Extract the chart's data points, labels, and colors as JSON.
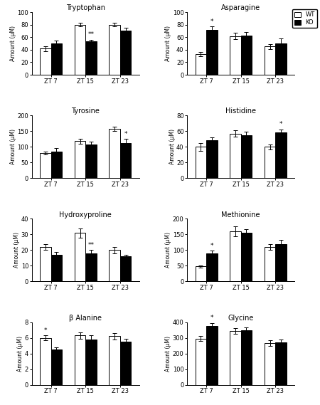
{
  "panels": [
    {
      "title": "Tryptophan",
      "ylabel": "Amount (μM)",
      "ylim": [
        0,
        100
      ],
      "yticks": [
        0,
        20,
        40,
        60,
        80,
        100
      ],
      "wt": [
        42,
        80,
        80
      ],
      "ko": [
        50,
        53,
        71
      ],
      "wt_err": [
        4,
        3,
        3
      ],
      "ko_err": [
        5,
        3,
        4
      ],
      "sig": [
        null,
        "**",
        null
      ],
      "sig_on": "ko"
    },
    {
      "title": "Asparagine",
      "ylabel": "Amount (μM)",
      "ylim": [
        0,
        100
      ],
      "yticks": [
        0,
        20,
        40,
        60,
        80,
        100
      ],
      "wt": [
        33,
        62,
        45
      ],
      "ko": [
        72,
        63,
        50
      ],
      "wt_err": [
        3,
        5,
        4
      ],
      "ko_err": [
        5,
        5,
        8
      ],
      "sig": [
        "*",
        null,
        null
      ],
      "sig_on": "ko"
    },
    {
      "title": "Tyrosine",
      "ylabel": "Amount (μM)",
      "ylim": [
        0,
        200
      ],
      "yticks": [
        0,
        50,
        100,
        150,
        200
      ],
      "wt": [
        80,
        118,
        157
      ],
      "ko": [
        85,
        107,
        113
      ],
      "wt_err": [
        5,
        8,
        7
      ],
      "ko_err": [
        10,
        10,
        12
      ],
      "sig": [
        null,
        null,
        "*"
      ],
      "sig_on": "ko"
    },
    {
      "title": "Histidine",
      "ylabel": "Amount (μM)",
      "ylim": [
        0,
        80
      ],
      "yticks": [
        0,
        20,
        40,
        60,
        80
      ],
      "wt": [
        40,
        57,
        40
      ],
      "ko": [
        48,
        55,
        58
      ],
      "wt_err": [
        5,
        4,
        3
      ],
      "ko_err": [
        4,
        4,
        4
      ],
      "sig": [
        null,
        null,
        "*"
      ],
      "sig_on": "ko"
    },
    {
      "title": "Hydroxyproline",
      "ylabel": "Amount (μM)",
      "ylim": [
        0,
        40
      ],
      "yticks": [
        0,
        10,
        20,
        30,
        40
      ],
      "wt": [
        22,
        31,
        20
      ],
      "ko": [
        17,
        18,
        16
      ],
      "wt_err": [
        2,
        3,
        2
      ],
      "ko_err": [
        2,
        2,
        1
      ],
      "sig": [
        null,
        "**",
        null
      ],
      "sig_on": "ko"
    },
    {
      "title": "Methionine",
      "ylabel": "Amount (μM)",
      "ylim": [
        0,
        200
      ],
      "yticks": [
        0,
        50,
        100,
        150,
        200
      ],
      "wt": [
        48,
        160,
        110
      ],
      "ko": [
        90,
        155,
        120
      ],
      "wt_err": [
        4,
        15,
        8
      ],
      "ko_err": [
        8,
        12,
        12
      ],
      "sig": [
        "*",
        null,
        null
      ],
      "sig_on": "ko"
    },
    {
      "title": "β Alanine",
      "ylabel": "Amount (μM)",
      "ylim": [
        0,
        8
      ],
      "yticks": [
        0,
        2,
        4,
        6,
        8
      ],
      "wt": [
        6.0,
        6.3,
        6.2
      ],
      "ko": [
        4.5,
        5.8,
        5.5
      ],
      "wt_err": [
        0.3,
        0.4,
        0.4
      ],
      "ko_err": [
        0.3,
        0.5,
        0.4
      ],
      "sig": [
        "*",
        null,
        null
      ],
      "sig_on": "wt"
    },
    {
      "title": "Glycine",
      "ylabel": "Amount (μM)",
      "ylim": [
        0,
        400
      ],
      "yticks": [
        0,
        100,
        200,
        300,
        400
      ],
      "wt": [
        295,
        345,
        265
      ],
      "ko": [
        375,
        348,
        270
      ],
      "wt_err": [
        15,
        18,
        18
      ],
      "ko_err": [
        18,
        18,
        18
      ],
      "sig": [
        "*",
        null,
        null
      ],
      "sig_on": "ko"
    }
  ],
  "wt_color": "white",
  "ko_color": "black",
  "bar_edge_color": "black",
  "bar_width": 0.32,
  "groups": [
    "ZT 7",
    "ZT 15",
    "ZT 23"
  ]
}
